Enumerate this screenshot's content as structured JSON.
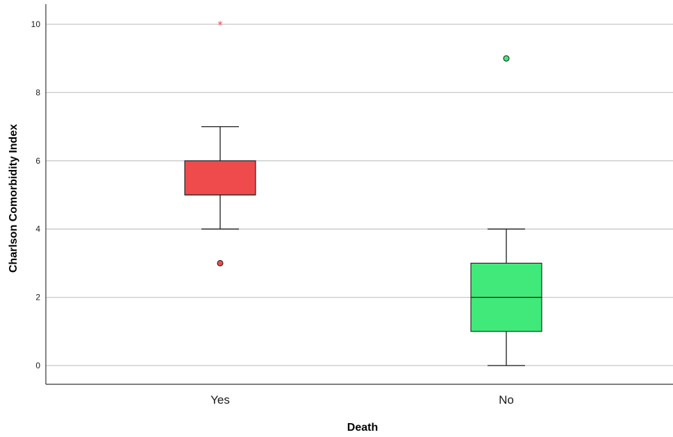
{
  "chart_data": {
    "type": "boxplot",
    "xlabel": "Death",
    "ylabel": "Charlson Comorbidity Index",
    "categories": [
      "Yes",
      "No"
    ],
    "ylim": [
      -0.5,
      10.6
    ],
    "yticks": [
      "0",
      "2",
      "4",
      "6",
      "8",
      "10"
    ],
    "grid": true,
    "boxes": [
      {
        "category": "Yes",
        "color": "#ef4b4d",
        "whisker_low": 4,
        "q1": 5,
        "median": 5,
        "q3": 6,
        "whisker_high": 7,
        "outliers": [
          3
        ],
        "extremes": [
          10
        ]
      },
      {
        "category": "No",
        "color": "#40e97a",
        "whisker_low": 0,
        "q1": 1,
        "median": 2,
        "q3": 3,
        "whisker_high": 4,
        "outliers": [
          9
        ],
        "extremes": []
      }
    ],
    "colors": {
      "grid": "#c8c8c8",
      "axis": "#333333",
      "box_stroke": "#1a1a1a"
    }
  }
}
